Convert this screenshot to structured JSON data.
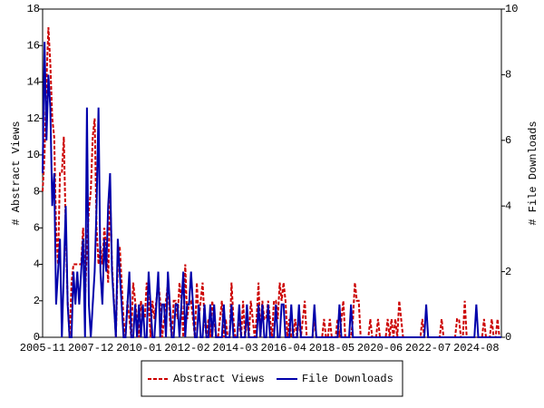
{
  "chart_data": {
    "type": "line",
    "x": [
      "2005-11",
      null,
      null,
      null,
      null,
      null,
      null,
      null,
      null,
      null,
      null,
      null,
      null,
      null,
      null,
      null,
      null,
      null,
      null,
      null,
      null,
      null,
      null,
      null,
      null,
      "2007-12",
      null,
      null,
      null,
      null,
      null,
      null,
      null,
      null,
      null,
      null,
      null,
      null,
      null,
      null,
      null,
      null,
      null,
      null,
      null,
      null,
      null,
      null,
      null,
      null,
      "2010-01",
      null,
      null,
      null,
      null,
      null,
      null,
      null,
      null,
      null,
      null,
      null,
      null,
      null,
      null,
      null,
      null,
      null,
      null,
      null,
      null,
      null,
      null,
      null,
      null,
      "2012-02",
      null,
      null,
      null,
      null,
      null,
      null,
      null,
      null,
      null,
      null,
      null,
      null,
      null,
      null,
      null,
      null,
      null,
      null,
      null,
      null,
      null,
      null,
      null,
      null,
      "2014-03",
      null,
      null,
      null,
      null,
      null,
      null,
      null,
      null,
      null,
      null,
      null,
      null,
      null,
      null,
      null,
      null,
      null,
      null,
      null,
      null,
      null,
      null,
      null,
      null,
      "2016-04",
      null,
      null,
      null,
      null,
      null,
      null,
      null,
      null,
      null,
      null,
      null,
      null,
      null,
      null,
      null,
      null,
      null,
      null,
      null,
      null,
      null,
      null,
      null,
      null,
      "2018-05",
      null,
      null,
      null,
      null,
      null,
      null,
      null,
      null,
      null,
      null,
      null,
      null,
      null,
      null,
      null,
      null,
      null,
      null,
      null,
      null,
      null,
      null,
      null,
      null,
      "2020-06",
      null,
      null,
      null,
      null,
      null,
      null,
      null,
      null,
      null,
      null,
      null,
      null,
      null,
      null,
      null,
      null,
      null,
      null,
      null,
      null,
      null,
      null,
      null,
      null,
      "2022-07",
      null,
      null,
      null,
      null,
      null,
      null,
      null,
      null,
      null,
      null,
      null,
      null,
      null,
      null,
      null,
      null,
      null,
      null,
      null,
      null,
      null,
      null,
      null,
      null,
      "2024-08",
      null,
      null,
      null,
      null,
      null,
      null,
      null,
      null,
      null,
      null,
      null,
      null,
      null
    ],
    "ylabel": "# Abstract Views",
    "y2label": "# File Downloads",
    "ylim": [
      0,
      18
    ],
    "yticks": [
      0,
      2,
      4,
      6,
      8,
      10,
      12,
      14,
      16,
      18
    ],
    "y2lim": [
      0,
      10
    ],
    "y2ticks": [
      0,
      2,
      4,
      6,
      8,
      10
    ],
    "legend": "bottom",
    "series": [
      {
        "name": "Abstract Views",
        "color": "#cc0000",
        "dashed": true,
        "values": [
          8,
          10,
          14,
          17,
          15,
          12,
          11,
          6,
          4,
          9,
          9,
          11,
          6,
          2,
          0,
          3,
          4,
          4,
          4,
          4,
          4,
          6,
          2,
          5,
          7,
          8,
          11,
          12,
          6,
          4,
          5,
          4,
          6,
          5,
          3,
          8,
          4,
          2,
          0,
          4,
          5,
          3,
          1,
          0,
          2,
          1,
          0,
          3,
          2,
          1,
          0,
          2,
          1,
          1,
          3,
          2,
          0,
          2,
          1,
          2,
          3,
          2,
          0,
          1,
          2,
          3,
          1,
          0,
          2,
          2,
          1,
          3,
          2,
          0,
          4,
          1,
          2,
          2,
          1,
          0,
          3,
          1,
          2,
          3,
          1,
          0,
          1,
          0,
          2,
          1,
          0,
          0,
          1,
          2,
          0,
          1,
          0,
          0,
          3,
          1,
          0,
          0,
          1,
          0,
          2,
          0,
          1,
          0,
          2,
          1,
          0,
          1,
          3,
          0,
          2,
          1,
          1,
          2,
          1,
          0,
          2,
          2,
          1,
          3,
          2,
          3,
          2,
          0,
          1,
          0,
          0,
          1,
          0,
          1,
          0,
          1,
          2,
          0,
          0,
          0,
          0,
          1,
          0,
          0,
          0,
          0,
          1,
          0,
          0,
          1,
          0,
          0,
          0,
          1,
          0,
          1,
          2,
          0,
          0,
          0,
          0,
          1,
          3,
          2,
          2,
          0,
          0,
          0,
          0,
          0,
          1,
          0,
          0,
          0,
          1,
          0,
          0,
          0,
          0,
          1,
          0,
          1,
          0,
          1,
          0,
          2,
          1,
          0,
          0,
          0,
          0,
          0,
          0,
          0,
          0,
          0,
          0,
          1,
          0,
          0,
          0,
          0,
          0,
          0,
          0,
          0,
          0,
          1,
          0,
          0,
          0,
          0,
          0,
          0,
          0,
          1,
          1,
          0,
          0,
          2,
          0,
          0,
          0,
          0,
          0,
          0,
          0,
          0,
          0,
          1,
          0,
          0,
          0,
          1,
          0,
          0,
          1,
          0,
          0
        ]
      },
      {
        "name": "File Downloads",
        "color": "#0000aa",
        "axis": "y2",
        "values": [
          5,
          9,
          6,
          8,
          7,
          4,
          5,
          1,
          2,
          3,
          0,
          2,
          4,
          1,
          0,
          0,
          2,
          1,
          2,
          1,
          2,
          3,
          0,
          7,
          1,
          0,
          1,
          2,
          4,
          7,
          2,
          1,
          3,
          2,
          4,
          5,
          2,
          1,
          0,
          3,
          2,
          1,
          0,
          0,
          1,
          2,
          0,
          0,
          1,
          0,
          1,
          0,
          1,
          0,
          0,
          2,
          1,
          0,
          0,
          1,
          2,
          0,
          1,
          1,
          0,
          2,
          1,
          0,
          0,
          1,
          1,
          0,
          1,
          2,
          0,
          1,
          1,
          2,
          1,
          0,
          0,
          1,
          0,
          0,
          1,
          0,
          0,
          1,
          0,
          1,
          0,
          0,
          0,
          0,
          1,
          0,
          0,
          0,
          1,
          0,
          0,
          0,
          1,
          0,
          0,
          0,
          1,
          0,
          0,
          0,
          0,
          0,
          1,
          0,
          1,
          0,
          0,
          1,
          0,
          0,
          0,
          1,
          0,
          0,
          1,
          1,
          0,
          0,
          0,
          1,
          0,
          0,
          0,
          1,
          0,
          0,
          0,
          0,
          0,
          0,
          0,
          1,
          0,
          0,
          0,
          0,
          0,
          0,
          0,
          0,
          0,
          0,
          0,
          0,
          1,
          0,
          0,
          0,
          0,
          0,
          1,
          0,
          0,
          0,
          0,
          0,
          0,
          0,
          0,
          0,
          0,
          0,
          0,
          0,
          0,
          0,
          0,
          0,
          0,
          0,
          0,
          0,
          0,
          0,
          0,
          0,
          0,
          0,
          0,
          0,
          0,
          0,
          0,
          0,
          0,
          0,
          0,
          0,
          0,
          1,
          0,
          0,
          0,
          0,
          0,
          0,
          0,
          0,
          0,
          0,
          0,
          0,
          0,
          0,
          0,
          0,
          0,
          0,
          0,
          0,
          0,
          0,
          0,
          0,
          0,
          1,
          0,
          0,
          0,
          0,
          0,
          0,
          0,
          0,
          0,
          0,
          0,
          0,
          0
        ]
      }
    ]
  }
}
